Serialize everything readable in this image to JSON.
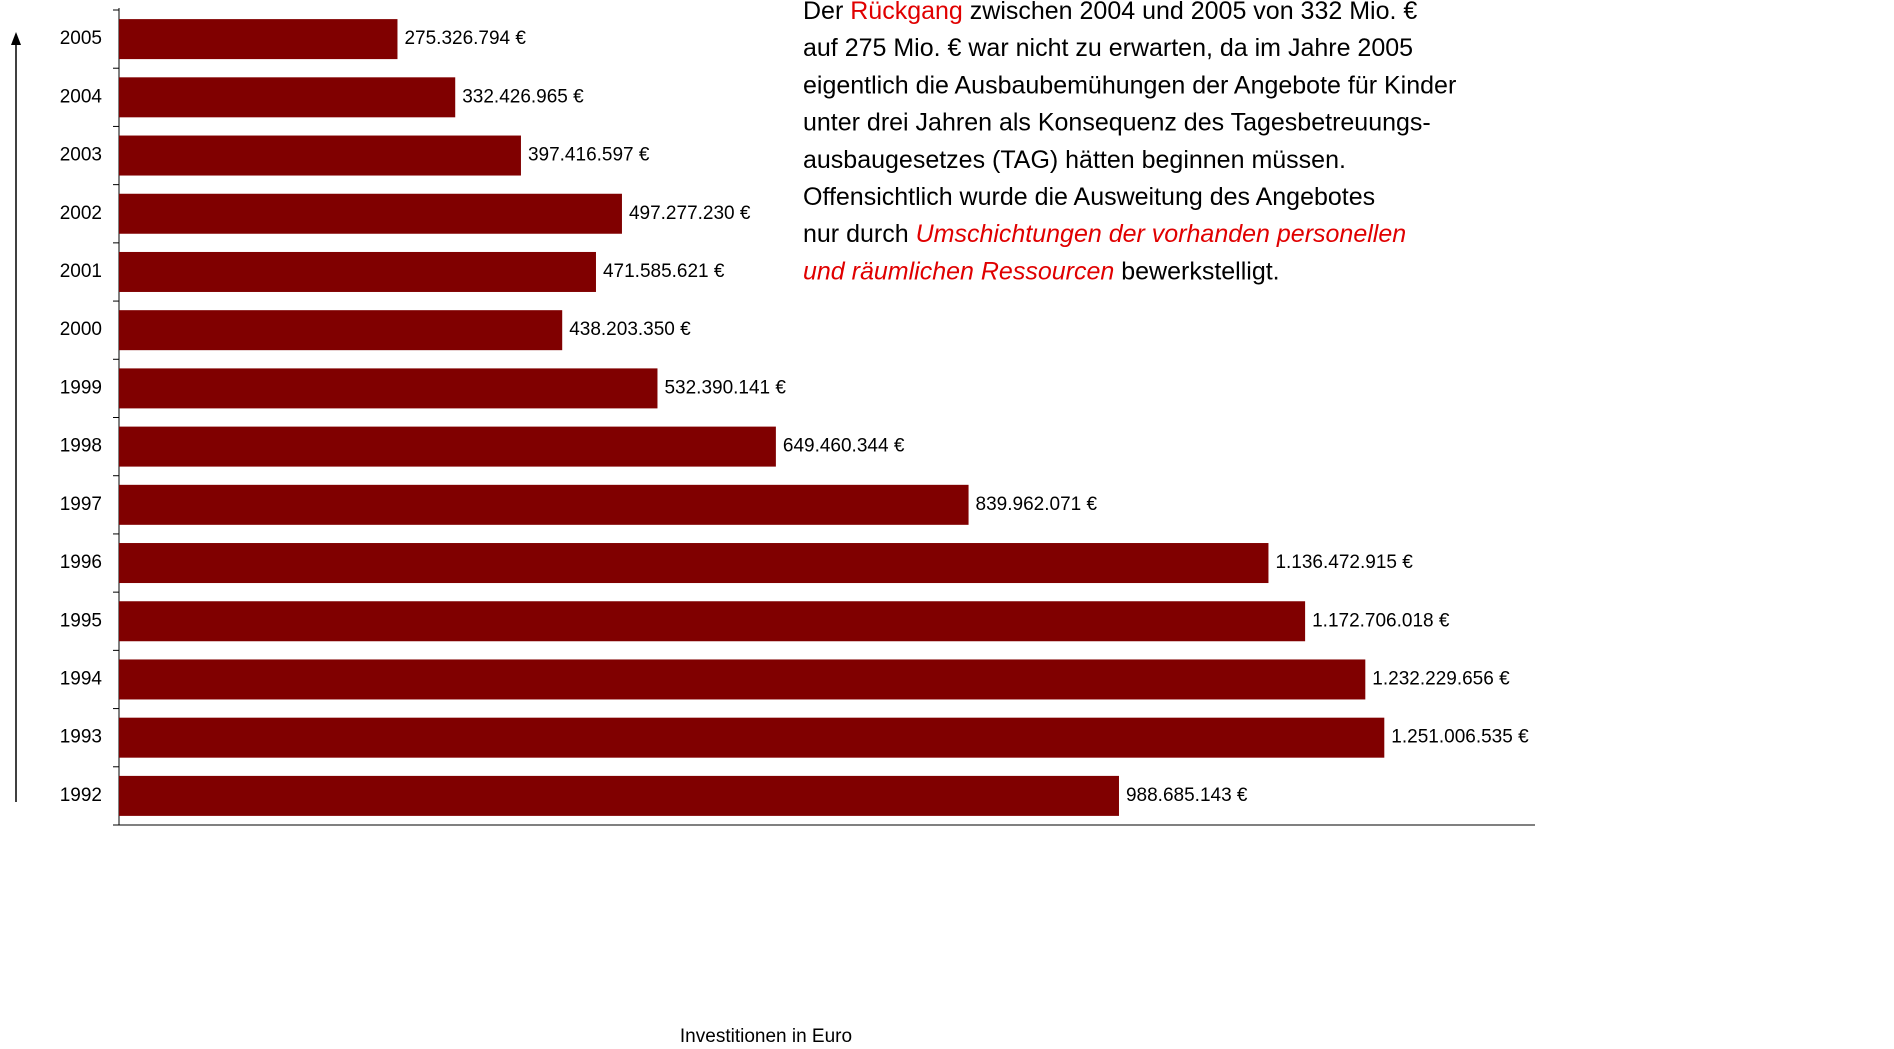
{
  "chart_data": {
    "type": "barh",
    "categories": [
      "2005",
      "2004",
      "2003",
      "2002",
      "2001",
      "2000",
      "1999",
      "1998",
      "1997",
      "1996",
      "1995",
      "1994",
      "1993",
      "1992"
    ],
    "values": [
      275326794,
      332426965,
      397416597,
      497277230,
      471585621,
      438203350,
      532390141,
      649460344,
      839962071,
      1136472915,
      1172706018,
      1232229656,
      1251006535,
      988685143
    ],
    "value_labels": [
      "275.326.794 €",
      "332.426.965 €",
      "397.416.597 €",
      "497.277.230 €",
      "471.585.621 €",
      "438.203.350 €",
      "532.390.141 €",
      "649.460.344 €",
      "839.962.071 €",
      "1.136.472.915 €",
      "1.172.706.018 €",
      "1.232.229.656 €",
      "1.251.006.535 €",
      "988.685.143 €"
    ],
    "color": "#800000",
    "xlim": [
      0,
      1400000000
    ],
    "xlabel": "Investitionen in Euro",
    "annotation": [
      [
        {
          "text": "Der "
        },
        {
          "text": "Rückgang",
          "color": "#e00000"
        },
        {
          "text": " zwischen 2004 und 2005 von 332 Mio. €"
        }
      ],
      [
        {
          "text": "auf 275 Mio. € war nicht zu erwarten, da im Jahre 2005"
        }
      ],
      [
        {
          "text": "eigentlich die Ausbaubemühungen der Angebote für Kinder"
        }
      ],
      [
        {
          "text": "unter drei Jahren als Konsequenz des Tagesbetreuungs-"
        }
      ],
      [
        {
          "text": "ausbaugesetzes (TAG) hätten beginnen müssen."
        }
      ],
      [
        {
          "text": "Offensichtlich wurde die Ausweitung des Angebotes"
        }
      ],
      [
        {
          "text": "nur durch "
        },
        {
          "text": "Umschichtungen der vorhanden personellen",
          "color": "#e00000",
          "italic": true
        }
      ],
      [
        {
          "text": "und räumlichen Ressourcen",
          "color": "#e00000",
          "italic": true
        },
        {
          "text": " bewerkstelligt."
        }
      ]
    ]
  }
}
